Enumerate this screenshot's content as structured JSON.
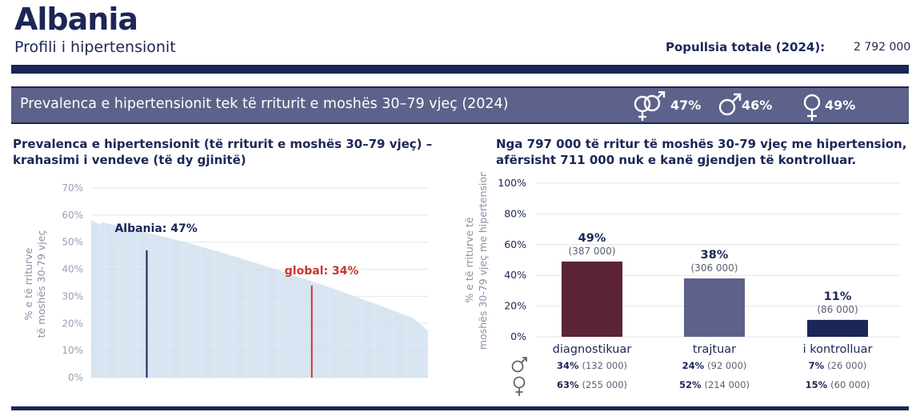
{
  "header": {
    "country": "Albania",
    "subtitle": "Profili i hipertensionit",
    "population_label": "Popullsia totale (2024):",
    "population_value": "2 792 000"
  },
  "banner": {
    "title": "Prevalenca e hipertensionit tek të rriturit e moshës 30–79 vjeç (2024)",
    "both_value": "47%",
    "male_value": "46%",
    "female_value": "49%",
    "icons": [
      "both-sexes-icon",
      "male-icon",
      "female-icon"
    ]
  },
  "colors": {
    "navy": "#1c2657",
    "banner": "#5e628a",
    "global_red": "#c8372d",
    "diagnosed": "#5c2238",
    "treated": "#5e628a",
    "controlled": "#1c2657",
    "country_bars": "#c9dbec"
  },
  "chart_data": [
    {
      "type": "bar",
      "title": "Prevalenca e hipertensionit (të rriturit e moshës 30–79 vjeç) – krahasimi i vendeve (të dy gjinitë)",
      "ylabel": "% e të rriturve të moshës 30-79 vjeç",
      "ylim": [
        0,
        70
      ],
      "yticks": [
        "0%",
        "10%",
        "20%",
        "30%",
        "40%",
        "50%",
        "60%",
        "70%"
      ],
      "ytick_values": [
        0,
        10,
        20,
        30,
        40,
        50,
        60,
        70
      ],
      "grid": true,
      "series_description": "countries sorted by prevalence, descending",
      "country_count": 200,
      "max_value": 58,
      "min_value": 20,
      "highlights": [
        {
          "label": "Albania: 47%",
          "value": 47,
          "rank_fraction": 0.165,
          "color": "#1c2657"
        },
        {
          "label": "global: 34%",
          "value": 34,
          "rank_fraction": 0.655,
          "color": "#c8372d"
        }
      ]
    },
    {
      "type": "bar",
      "title": "Nga 797 000 të rritur të moshës 30-79 vjeç me hipertension, afërsisht 711 000 nuk e kanë gjendjen të kontrolluar.",
      "ylabel": "% e të rriturve të moshës 30-79 vjeç me hipertension",
      "ylim": [
        0,
        100
      ],
      "yticks": [
        "0%",
        "20%",
        "40%",
        "60%",
        "80%",
        "100%"
      ],
      "ytick_values": [
        0,
        20,
        40,
        60,
        80,
        100
      ],
      "grid": true,
      "categories": [
        "diagnostikuar",
        "trajtuar",
        "i kontrolluar"
      ],
      "values": [
        49,
        38,
        11
      ],
      "value_labels": [
        "49%",
        "38%",
        "11%"
      ],
      "count_labels": [
        "(387 000)",
        "(306 000)",
        "(86 000)"
      ],
      "male": [
        {
          "pct": "34%",
          "count": "(132 000)"
        },
        {
          "pct": "24%",
          "count": "(92 000)"
        },
        {
          "pct": "7%",
          "count": "(26 000)"
        }
      ],
      "female": [
        {
          "pct": "63%",
          "count": "(255 000)"
        },
        {
          "pct": "52%",
          "count": "(214 000)"
        },
        {
          "pct": "15%",
          "count": "(60 000)"
        }
      ]
    }
  ]
}
